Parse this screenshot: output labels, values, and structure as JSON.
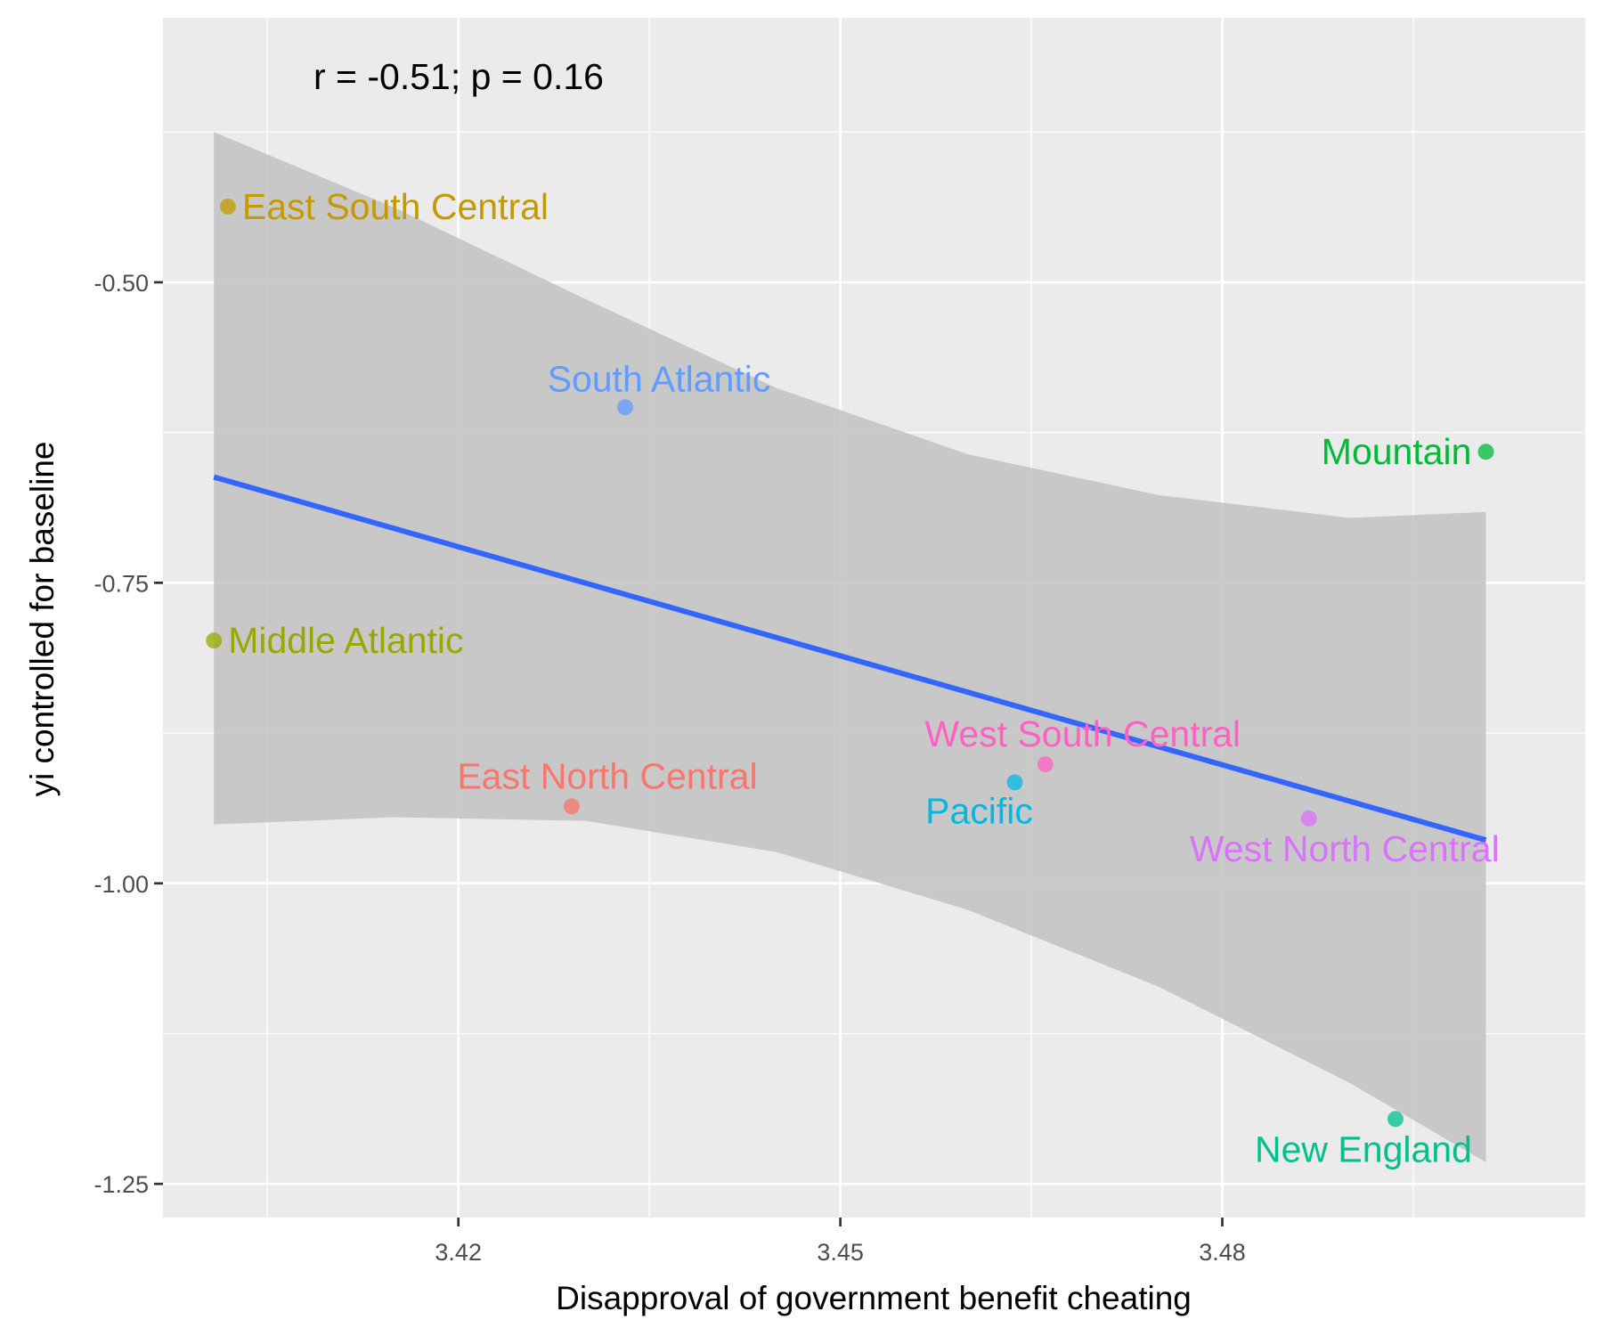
{
  "chart_data": {
    "type": "scatter",
    "annotation": "r = -0.51; p = 0.16",
    "xlabel": "Disapproval of government benefit cheating",
    "ylabel": "yi controlled for baseline",
    "xlim": [
      3.3968,
      3.5085
    ],
    "ylim": [
      -1.278,
      -0.28
    ],
    "x_ticks": [
      3.42,
      3.45,
      3.48
    ],
    "x_tick_labels": [
      "3.42",
      "3.45",
      "3.48"
    ],
    "y_ticks": [
      -0.5,
      -0.75,
      -1.0,
      -1.25
    ],
    "y_tick_labels": [
      "-0.50",
      "-0.75",
      "-1.00",
      "-1.25"
    ],
    "grid": true,
    "points": [
      {
        "label": "East South Central",
        "x": 3.4019,
        "y": -0.437,
        "color": "#C49A00"
      },
      {
        "label": "South Atlantic",
        "x": 3.4331,
        "y": -0.604,
        "color": "#619CFF"
      },
      {
        "label": "Mountain",
        "x": 3.5007,
        "y": -0.641,
        "color": "#00BA38"
      },
      {
        "label": "Middle Atlantic",
        "x": 3.4008,
        "y": -0.798,
        "color": "#99A800"
      },
      {
        "label": "West South Central",
        "x": 3.4661,
        "y": -0.901,
        "color": "#FF61C3"
      },
      {
        "label": "Pacific",
        "x": 3.4637,
        "y": -0.916,
        "color": "#00B9E3"
      },
      {
        "label": "East North Central",
        "x": 3.4289,
        "y": -0.936,
        "color": "#F8766D"
      },
      {
        "label": "West North Central",
        "x": 3.4868,
        "y": -0.946,
        "color": "#DB72FB"
      },
      {
        "label": "New England",
        "x": 3.4936,
        "y": -1.196,
        "color": "#00C08B"
      }
    ],
    "fit": {
      "x0": 3.4008,
      "y0": -0.662,
      "x1": 3.5007,
      "y1": -0.964,
      "color": "#3366FF"
    },
    "ci_band": [
      {
        "x": 3.4008,
        "lo": -0.951,
        "hi": -0.375
      },
      {
        "x": 3.415,
        "lo": -0.945,
        "hi": -0.438
      },
      {
        "x": 3.43,
        "lo": -0.948,
        "hi": -0.514
      },
      {
        "x": 3.445,
        "lo": -0.974,
        "hi": -0.588
      },
      {
        "x": 3.46,
        "lo": -1.022,
        "hi": -0.643
      },
      {
        "x": 3.475,
        "lo": -1.086,
        "hi": -0.677
      },
      {
        "x": 3.49,
        "lo": -1.166,
        "hi": -0.696
      },
      {
        "x": 3.5007,
        "lo": -1.232,
        "hi": -0.691
      }
    ],
    "ci_color": "#c4c4c4",
    "panel_background": "#ebebeb",
    "grid_color": "#ffffff"
  }
}
